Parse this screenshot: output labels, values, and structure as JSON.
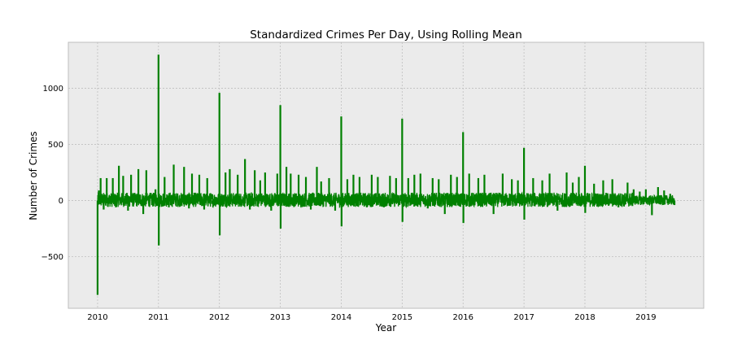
{
  "chart_data": {
    "type": "line",
    "title": "Standardized Crimes Per Day, Using Rolling Mean",
    "xlabel": "Year",
    "ylabel": "Number of Crimes",
    "x_ticks": [
      "2010",
      "2011",
      "2012",
      "2013",
      "2014",
      "2015",
      "2016",
      "2017",
      "2018",
      "2019"
    ],
    "y_ticks": [
      "−500",
      "0",
      "500",
      "1000"
    ],
    "x_tick_values": [
      2010,
      2011,
      2012,
      2013,
      2014,
      2015,
      2016,
      2017,
      2018,
      2019
    ],
    "y_tick_values": [
      -500,
      0,
      500,
      1000
    ],
    "xlim": [
      2009.52,
      2019.95
    ],
    "ylim": [
      -960,
      1410
    ],
    "grid": true,
    "colors": {
      "line": "#008000",
      "plot_background": "#EBEBEB",
      "grid": "#BFBFBF",
      "frame": "#BCBCBC"
    },
    "series": [
      {
        "values_note_free": true,
        "x": [
          2010.0,
          2010.01,
          2010.02,
          2010.03,
          2010.05,
          2010.1,
          2010.15,
          2010.2,
          2010.25,
          2010.3,
          2010.35,
          2010.4,
          2010.42,
          2010.5,
          2010.55,
          2010.6,
          2010.67,
          2010.75,
          2010.8,
          2010.9,
          2010.95,
          2011.0,
          2011.005,
          2011.01,
          2011.02,
          2011.1,
          2011.17,
          2011.25,
          2011.3,
          2011.42,
          2011.5,
          2011.55,
          2011.6,
          2011.67,
          2011.75,
          2011.8,
          2011.88,
          2011.95,
          2012.0,
          2012.005,
          2012.01,
          2012.02,
          2012.1,
          2012.17,
          2012.3,
          2012.42,
          2012.5,
          2012.58,
          2012.67,
          2012.75,
          2012.85,
          2012.95,
          2013.0,
          2013.005,
          2013.01,
          2013.02,
          2013.1,
          2013.17,
          2013.3,
          2013.42,
          2013.5,
          2013.6,
          2013.67,
          2013.8,
          2013.9,
          2014.0,
          2014.005,
          2014.01,
          2014.02,
          2014.1,
          2014.2,
          2014.3,
          2014.42,
          2014.5,
          2014.6,
          2014.7,
          2014.8,
          2014.9,
          2015.0,
          2015.005,
          2015.01,
          2015.02,
          2015.1,
          2015.2,
          2015.3,
          2015.42,
          2015.5,
          2015.6,
          2015.7,
          2015.8,
          2015.9,
          2016.0,
          2016.005,
          2016.01,
          2016.02,
          2016.1,
          2016.25,
          2016.35,
          2016.5,
          2016.65,
          2016.8,
          2016.9,
          2017.0,
          2017.005,
          2017.01,
          2017.02,
          2017.15,
          2017.3,
          2017.42,
          2017.55,
          2017.7,
          2017.8,
          2017.9,
          2018.0,
          2018.005,
          2018.01,
          2018.02,
          2018.15,
          2018.3,
          2018.45,
          2018.55,
          2018.7,
          2018.8,
          2018.9,
          2019.0,
          2019.1,
          2019.2,
          2019.3,
          2019.4,
          2019.47
        ],
        "y": [
          -840,
          50,
          90,
          10,
          200,
          -80,
          200,
          40,
          200,
          -60,
          310,
          40,
          220,
          -90,
          230,
          40,
          280,
          -120,
          270,
          -40,
          100,
          1300,
          -400,
          60,
          -30,
          210,
          -60,
          320,
          30,
          300,
          -70,
          240,
          30,
          230,
          -80,
          200,
          -30,
          30,
          960,
          -310,
          60,
          -40,
          250,
          280,
          230,
          370,
          -80,
          270,
          180,
          250,
          -90,
          240,
          850,
          -250,
          60,
          -30,
          300,
          240,
          230,
          210,
          -80,
          300,
          170,
          200,
          -90,
          750,
          -230,
          60,
          -40,
          190,
          230,
          210,
          -60,
          230,
          210,
          -60,
          220,
          200,
          730,
          -190,
          50,
          -30,
          200,
          230,
          240,
          -70,
          200,
          190,
          -120,
          230,
          210,
          610,
          -200,
          60,
          -40,
          240,
          200,
          230,
          -120,
          240,
          190,
          180,
          470,
          -170,
          50,
          -40,
          200,
          180,
          240,
          -90,
          250,
          160,
          210,
          310,
          -110,
          40,
          -30,
          150,
          180,
          190,
          -60,
          160,
          100,
          80,
          100,
          -130,
          120,
          90,
          60,
          -40
        ]
      }
    ]
  }
}
